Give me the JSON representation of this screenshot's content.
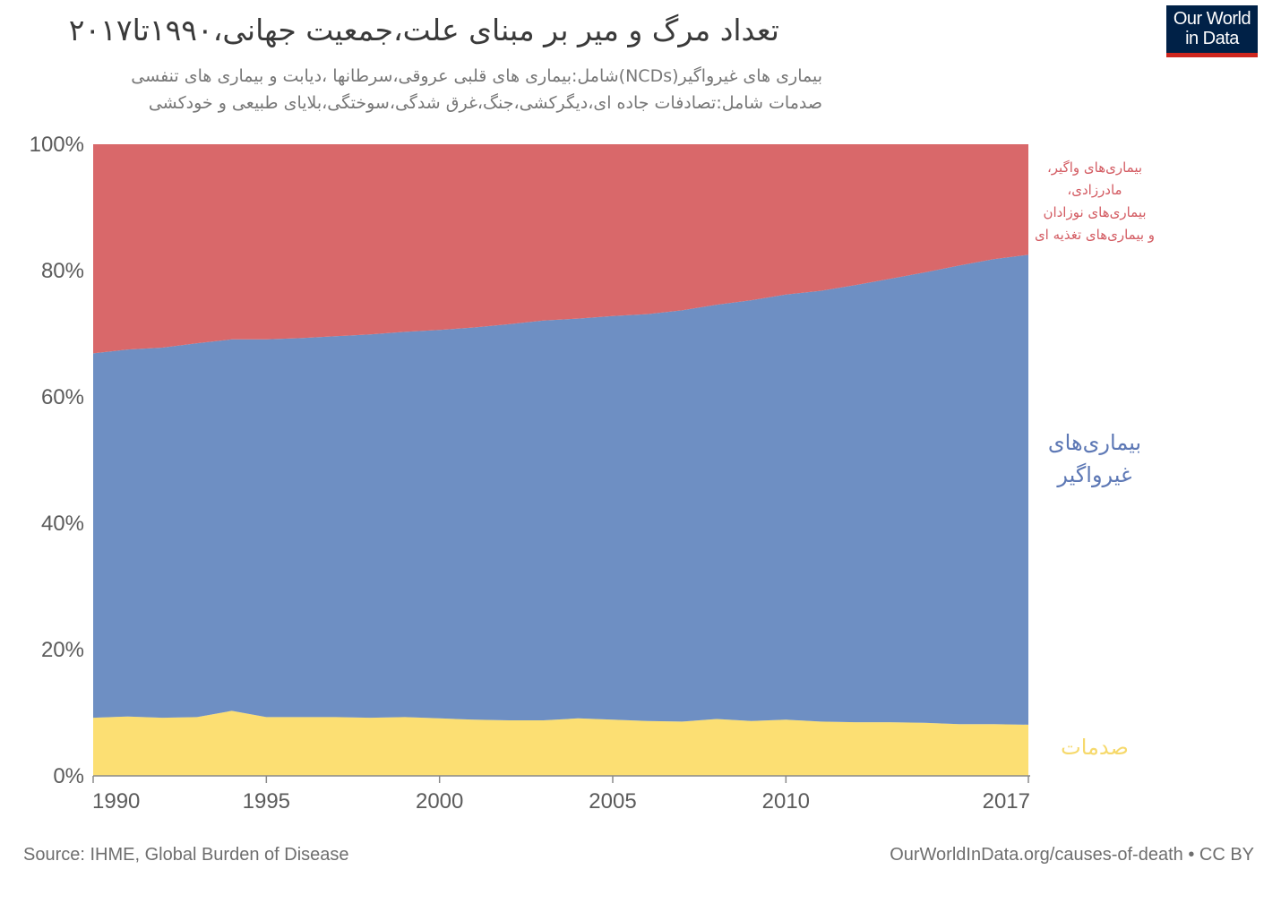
{
  "title": "تعداد مرگ و میر بر مبنای علت،جمعیت جهانی،۱۹۹۰تا۲۰۱۷",
  "subtitle_lines": [
    "بیماری های غیرواگیر(NCDs)شامل:بیماری های قلبی عروقی،سرطانها ،دیابت و بیماری های تنفسی",
    "صدمات شامل:تصادفات جاده ای،دیگرکشی،جنگ،غرق شدگی،سوختگی،بلایای طبیعی و خودکشی"
  ],
  "logo": {
    "line1": "Our World",
    "line2": "in Data",
    "bg": "#002147",
    "accent": "#ce261e"
  },
  "footer": {
    "source": "Source: IHME, Global Burden of Disease",
    "credit": "OurWorldInData.org/causes-of-death • CC BY"
  },
  "chart_data": {
    "type": "area",
    "stacked": true,
    "relative": true,
    "x": [
      1990,
      1991,
      1992,
      1993,
      1994,
      1995,
      1996,
      1997,
      1998,
      1999,
      2000,
      2001,
      2002,
      2003,
      2004,
      2005,
      2006,
      2007,
      2008,
      2009,
      2010,
      2011,
      2012,
      2013,
      2014,
      2015,
      2016,
      2017
    ],
    "xticks": [
      "1990",
      "1995",
      "2000",
      "2005",
      "2010",
      "2017"
    ],
    "xtick_values": [
      1990,
      1995,
      2000,
      2005,
      2010,
      2017
    ],
    "yticks": [
      "0%",
      "20%",
      "40%",
      "60%",
      "80%",
      "100%"
    ],
    "ytick_values": [
      0,
      20,
      40,
      60,
      80,
      100
    ],
    "ylim": [
      0,
      100
    ],
    "grid": false,
    "series": [
      {
        "name": "صدمات",
        "color": "#fcdf73",
        "label_color": "#f6d96c",
        "values": [
          9.2,
          9.4,
          9.2,
          9.3,
          10.3,
          9.3,
          9.3,
          9.3,
          9.2,
          9.3,
          9.1,
          8.9,
          8.8,
          8.8,
          9.1,
          8.9,
          8.7,
          8.6,
          9.0,
          8.7,
          8.9,
          8.6,
          8.5,
          8.5,
          8.4,
          8.2,
          8.2,
          8.1
        ]
      },
      {
        "name": "بیماری‌های غیرواگیر",
        "color": "#6e8fc3",
        "label_color": "#5d78b5",
        "values": [
          57.7,
          58.1,
          58.6,
          59.2,
          58.8,
          59.8,
          60.0,
          60.3,
          60.7,
          61.0,
          61.5,
          62.1,
          62.7,
          63.3,
          63.3,
          63.9,
          64.4,
          65.1,
          65.6,
          66.6,
          67.3,
          68.2,
          69.2,
          70.2,
          71.3,
          72.6,
          73.6,
          74.4
        ]
      },
      {
        "name": "بیماری‌های واگیر، مادرزادی، بیماری‌های نوزادان و بیماری‌های تغذیه ای",
        "color": "#d9686a",
        "label_color": "#d35b62",
        "label_lines": [
          "بیماری‌های واگیر،",
          "مادرزادی،",
          "بیماری‌های نوزادان",
          "و بیماری‌های تغذیه ای"
        ],
        "values": [
          33.1,
          32.5,
          32.2,
          31.5,
          30.9,
          30.9,
          30.7,
          30.4,
          30.1,
          29.7,
          29.4,
          29.0,
          28.5,
          27.9,
          27.6,
          27.2,
          26.9,
          26.3,
          25.4,
          24.7,
          23.8,
          23.2,
          22.3,
          21.3,
          20.3,
          19.2,
          18.2,
          17.5
        ]
      }
    ]
  }
}
